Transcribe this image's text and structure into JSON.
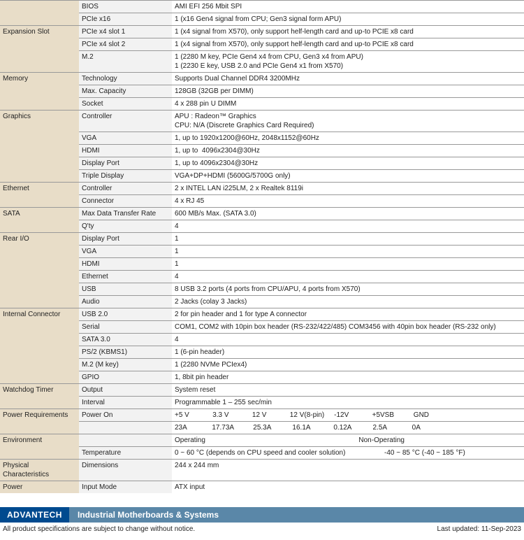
{
  "rows": [
    {
      "cat": "",
      "catrows": 2,
      "attr": "BIOS",
      "val": "AMI EFI 256 Mbit SPI"
    },
    {
      "attr": "PCIe x16",
      "val": "1 (x16 Gen4 signal from CPU; Gen3 signal form APU)"
    },
    {
      "cat": "Expansion Slot",
      "catrows": 3,
      "attr": "PCIe x4 slot 1",
      "val": "1 (x4 signal from X570), only support helf-length card and up-to PCIE x8 card"
    },
    {
      "attr": "PCIe x4 slot 2",
      "val": "1 (x4 signal from X570), only support helf-length card and up-to PCIE x8 card"
    },
    {
      "attr": "M.2",
      "val": "1 (2280 M key, PCIe Gen4 x4 from CPU, Gen3 x4 from APU)\n1 (2230 E key, USB 2.0 and PCIe Gen4 x1 from X570)"
    },
    {
      "cat": "Memory",
      "catrows": 3,
      "attr": "Technology",
      "val": "Supports Dual Channel DDR4 3200MHz"
    },
    {
      "attr": "Max. Capacity",
      "val": "128GB (32GB per DIMM)"
    },
    {
      "attr": "Socket",
      "val": "4 x 288 pin U DIMM"
    },
    {
      "cat": "Graphics",
      "catrows": 5,
      "attr": "Controller",
      "val": "APU : Radeon™ Graphics\nCPU: N/A (Discrete Graphics Card Required)"
    },
    {
      "attr": "VGA",
      "val": "1, up to 1920x1200@60Hz, 2048x1152@60Hz"
    },
    {
      "attr": "HDMI",
      "val": "1, up to  4096x2304@30Hz"
    },
    {
      "attr": "Display Port",
      "val": "1, up to 4096x2304@30Hz"
    },
    {
      "attr": "Triple Display",
      "val": "VGA+DP+HDMI (5600G/5700G only)"
    },
    {
      "cat": "Ethernet",
      "catrows": 2,
      "attr": "Controller",
      "val": "2 x INTEL LAN i225LM, 2 x Realtek 8119i"
    },
    {
      "attr": "Connector",
      "val": "4 x RJ 45"
    },
    {
      "cat": "SATA",
      "catrows": 2,
      "attr": "Max Data Transfer Rate",
      "val": "600 MB/s Max. (SATA 3.0)"
    },
    {
      "attr": "Q'ty",
      "val": "4"
    },
    {
      "cat": "Rear I/O",
      "catrows": 6,
      "attr": "Display Port",
      "val": "1"
    },
    {
      "attr": "VGA",
      "val": "1"
    },
    {
      "attr": "HDMI",
      "val": "1"
    },
    {
      "attr": "Ethernet",
      "val": "4"
    },
    {
      "attr": "USB",
      "val": "8 USB 3.2 ports (4 ports from CPU/APU, 4 ports from X570)"
    },
    {
      "attr": "Audio",
      "val": "2 Jacks (colay 3 Jacks)"
    },
    {
      "cat": "Internal Connector",
      "catrows": 6,
      "attr": "USB 2.0",
      "val": "2 for pin header and 1 for type A connector"
    },
    {
      "attr": "Serial",
      "val": "COM1, COM2 with 10pin box header (RS-232/422/485) COM3456 with 40pin box header (RS-232 only)"
    },
    {
      "attr": "SATA 3.0",
      "val": "4"
    },
    {
      "attr": "PS/2 (KBMS1)",
      "val": "1 (6-pin header)"
    },
    {
      "attr": "M.2 (M key)",
      "val": "1 (2280 NVMe PCIex4)"
    },
    {
      "attr": "GPIO",
      "val": "1, 8bit pin header"
    },
    {
      "cat": "Watchdog Timer",
      "catrows": 2,
      "attr": "Output",
      "val": "System reset"
    },
    {
      "attr": "Interval",
      "val": "Programmable 1 – 255 sec/min"
    },
    {
      "cat": "Power Requirements",
      "catrows": 2,
      "attr": "Power On",
      "val": "+5 V            3.3 V            12 V            12 V(8-pin)     -12V            +5VSB          GND"
    },
    {
      "attr": "",
      "val": "23A             17.73A          25.3A           16.1A            0.12A           2.5A             0A",
      "noborder": true
    },
    {
      "cat": "Environment",
      "catrows": 2,
      "attr": "",
      "val": "Operating                                                                               Non-Operating"
    },
    {
      "attr": "Temperature",
      "val": "0 ~ 60 °C (depends on CPU speed and cooler solution)                    -40 ~ 85 °C (-40 ~ 185 °F)"
    },
    {
      "cat": "Physical Characteristics",
      "catrows": 1,
      "attr": "Dimensions",
      "val": "244 x 244 mm"
    },
    {
      "cat": "Power",
      "catrows": 1,
      "attr": "Input Mode",
      "val": "ATX input"
    }
  ],
  "footer": {
    "logo": "ADVANTECH",
    "title": "Industrial Motherboards & Systems",
    "disclaimer": "All product specifications are subject to change without notice.",
    "updated": "Last updated: 11-Sep-2023"
  }
}
